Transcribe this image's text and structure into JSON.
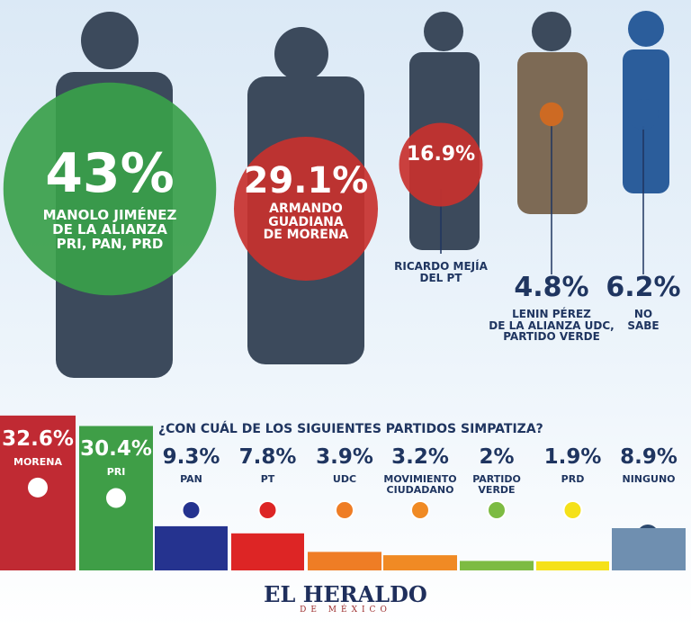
{
  "chart_data": [
    {
      "type": "bubble",
      "categories": [
        "MANOLO JIMÉNEZ\nDE LA ALIANZA\nPRI, PAN, PRD",
        "ARMANDO\nGUADIANA\nDE MORENA",
        "RICARDO MEJÍA\nDEL PT",
        "LENIN PÉREZ\nDE LA ALIANZA UDC,\nPARTIDO VERDE",
        "NO SABE"
      ],
      "values": [
        43,
        29.1,
        16.9,
        4.8,
        6.2
      ],
      "value_labels": [
        "43%",
        "29.1%",
        "16.9%",
        "4.8%",
        "6.2%"
      ],
      "colors": [
        "#3aa04a",
        "#c8312e",
        "#c8312e",
        "#d46a1f",
        "#2b5d9b"
      ]
    },
    {
      "type": "bar",
      "title": "¿CON CUÁL DE LOS SIGUIENTES PARTIDOS SIMPATIZA?",
      "categories": [
        "MORENA",
        "PRI",
        "PAN",
        "PT",
        "UDC",
        "MOVIMIENTO\nCIUDADANO",
        "PARTIDO\nVERDE",
        "PRD",
        "NINGUNO"
      ],
      "values": [
        32.6,
        30.4,
        9.3,
        7.8,
        3.9,
        3.2,
        2,
        1.9,
        8.9
      ],
      "value_labels": [
        "32.6%",
        "30.4%",
        "9.3%",
        "7.8%",
        "3.9%",
        "3.2%",
        "2%",
        "1.9%",
        "8.9%"
      ],
      "colors": [
        "#c02a33",
        "#3f9e47",
        "#25338f",
        "#dd2525",
        "#ef7d25",
        "#f08a24",
        "#7dbb42",
        "#f5e11a",
        "#6f8fb0"
      ]
    }
  ],
  "footer": {
    "brand": "EL HERALDO",
    "sub": "DE MÉXICO"
  }
}
